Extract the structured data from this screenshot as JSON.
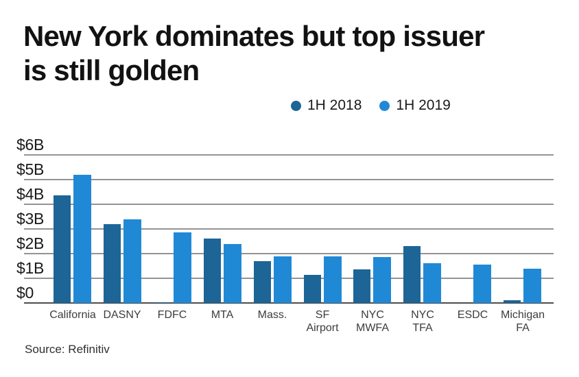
{
  "title": {
    "line1": "New York dominates but top issuer",
    "line2": "is still golden"
  },
  "legend": {
    "items": [
      {
        "label": "1H 2018",
        "color": "#1d6596"
      },
      {
        "label": "1H 2019",
        "color": "#2089d6"
      }
    ]
  },
  "source": "Source: Refinitiv",
  "colors": {
    "series_2018": "#1d6596",
    "series_2019": "#2089d6",
    "gridline": "#939393",
    "baseline": "#4d4d4d"
  },
  "chart_data": {
    "type": "bar",
    "title": "New York dominates but top issuer is still golden",
    "categories": [
      "California",
      "DASNY",
      "FDFC",
      "MTA",
      "Mass.",
      "SF Airport",
      "NYC MWFA",
      "NYC TFA",
      "ESDC",
      "Michigan FA"
    ],
    "categories_display": [
      "California",
      "DASNY",
      "FDFC",
      "MTA",
      "Mass.",
      "SF\nAirport",
      "NYC\nMWFA",
      "NYC\nTFA",
      "ESDC",
      "Michigan\nFA"
    ],
    "series": [
      {
        "name": "1H 2018",
        "color": "#1d6596",
        "values": [
          4.35,
          3.2,
          0.04,
          2.6,
          1.7,
          1.15,
          1.35,
          2.3,
          0,
          0.1
        ]
      },
      {
        "name": "1H 2019",
        "color": "#2089d6",
        "values": [
          5.2,
          3.4,
          2.85,
          2.4,
          1.9,
          1.9,
          1.85,
          1.6,
          1.55,
          1.4
        ]
      }
    ],
    "unit": "billions of US dollars",
    "ylabel": "",
    "xlabel": "",
    "ylim": [
      0,
      6
    ],
    "ytick_step": 1,
    "ytick_labels": [
      "$0",
      "$1B",
      "$2B",
      "$3B",
      "$4B",
      "$5B",
      "$6B"
    ],
    "grid": true,
    "legend_position": "top-right",
    "source": "Source: Refinitiv"
  }
}
